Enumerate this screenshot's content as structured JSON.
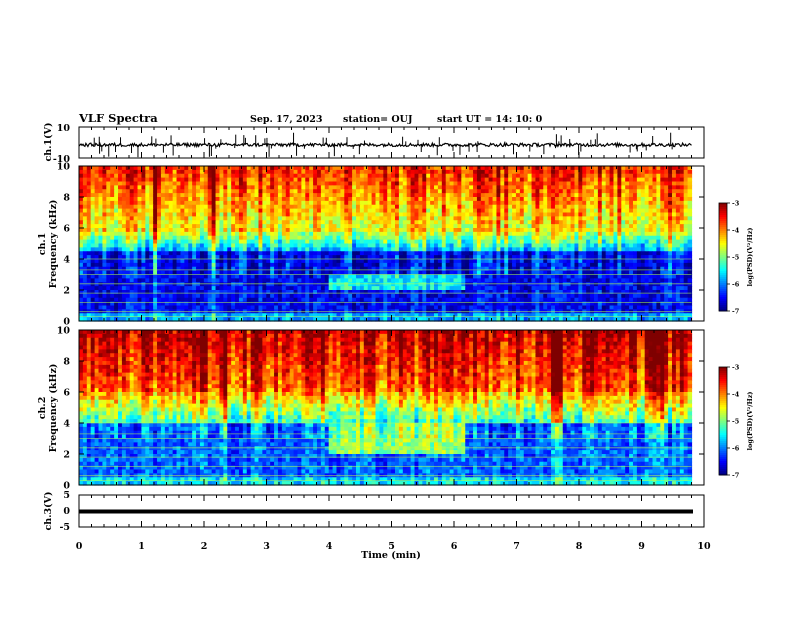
{
  "header": {
    "title": "VLF Spectra",
    "date": "Sep. 17, 2023",
    "station": "station= OUJ",
    "start": "start  UT =   14: 10: 0"
  },
  "chart_data": [
    {
      "panel": "ch1-waveform",
      "type": "line",
      "ylabel": "ch.1(V)",
      "y_ticks": [
        "10",
        "-10"
      ],
      "ylim": [
        -10,
        10
      ],
      "xlim": [
        0,
        10
      ],
      "baseline": -1.5
    },
    {
      "panel": "ch1-spectrogram",
      "type": "heatmap",
      "ylabel": "ch.1\nFrequency (kHz)",
      "y_ticks": [
        "0",
        "2",
        "4",
        "6",
        "8",
        "10"
      ],
      "ylim": [
        0,
        10
      ],
      "xlim": [
        0,
        10
      ],
      "colorbar": {
        "label": "log(PSD)(V²/Hz)",
        "ticks": [
          "-3",
          "-4",
          "-5",
          "-6",
          "-7"
        ],
        "range": [
          -7,
          -3
        ]
      }
    },
    {
      "panel": "ch2-spectrogram",
      "type": "heatmap",
      "ylabel": "ch.2\nFrequency (kHz)",
      "y_ticks": [
        "0",
        "2",
        "4",
        "6",
        "8",
        "10"
      ],
      "ylim": [
        0,
        10
      ],
      "xlim": [
        0,
        10
      ],
      "colorbar": {
        "label": "log(PSD)(V²/Hz)",
        "ticks": [
          "-3",
          "-4",
          "-5",
          "-6",
          "-7"
        ],
        "range": [
          -7,
          -3
        ]
      }
    },
    {
      "panel": "ch3-waveform",
      "type": "line",
      "ylabel": "ch.3(V)",
      "y_ticks": [
        "5",
        "0",
        "-5"
      ],
      "ylim": [
        -5,
        5
      ],
      "xlim": [
        0,
        10
      ],
      "baseline": -1.2
    }
  ],
  "xaxis": {
    "label": "Time  (min)",
    "ticks": [
      "0",
      "1",
      "2",
      "3",
      "4",
      "5",
      "6",
      "7",
      "8",
      "9",
      "10"
    ],
    "data_end": 9.8
  },
  "colors": {
    "colormap": [
      "#00007f",
      "#0000ff",
      "#007fff",
      "#00ffff",
      "#7fff7f",
      "#ffff00",
      "#ff7f00",
      "#ff0000",
      "#7f0000"
    ]
  }
}
